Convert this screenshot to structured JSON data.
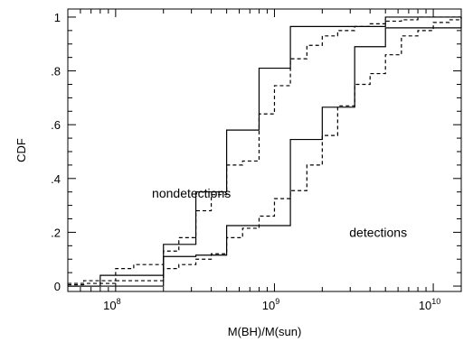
{
  "chart_data": {
    "type": "line",
    "step": true,
    "xlabel": "M(BH)/M(sun)",
    "ylabel": "CDF",
    "xscale": "log",
    "xlim": [
      50000000,
      15000000000
    ],
    "ylim": [
      -0.02,
      1.03
    ],
    "x_tick_labels": [
      {
        "value": 100000000,
        "base": "10",
        "exp": "8"
      },
      {
        "value": 1000000000,
        "base": "10",
        "exp": "9"
      },
      {
        "value": 10000000000,
        "base": "10",
        "exp": "10"
      }
    ],
    "y_ticks": [
      {
        "value": 0,
        "label": "0"
      },
      {
        "value": 0.2,
        "label": ".2"
      },
      {
        "value": 0.4,
        "label": ".4"
      },
      {
        "value": 0.6,
        "label": ".6"
      },
      {
        "value": 0.8,
        "label": ".8"
      },
      {
        "value": 1,
        "label": "1"
      }
    ],
    "annotations": [
      {
        "text": "nondetections",
        "x": 300000000,
        "y": 0.345
      },
      {
        "text": "detections",
        "x": 4500000000,
        "y": 0.2
      }
    ],
    "series": [
      {
        "style": "solid",
        "x": [
          50000000,
          80000000,
          200000000,
          320000000,
          500000000,
          800000000,
          1260000000,
          5000000000,
          15000000000
        ],
        "y": [
          0.0,
          0.04,
          0.155,
          0.35,
          0.58,
          0.81,
          0.965,
          1.0,
          1.0
        ]
      },
      {
        "style": "dashed",
        "x": [
          50000000,
          63000000,
          100000000,
          130000000,
          200000000,
          250000000,
          320000000,
          400000000,
          500000000,
          630000000,
          800000000,
          1000000000,
          1260000000,
          1600000000,
          2000000000,
          2500000000,
          3200000000,
          4000000000,
          5000000000,
          6300000000,
          8000000000,
          12600000000,
          15000000000
        ],
        "y": [
          0.005,
          0.02,
          0.065,
          0.08,
          0.13,
          0.18,
          0.28,
          0.34,
          0.45,
          0.465,
          0.64,
          0.745,
          0.845,
          0.895,
          0.93,
          0.95,
          0.965,
          0.975,
          0.985,
          0.99,
          1.0,
          1.0,
          1.0
        ]
      },
      {
        "style": "solid",
        "x": [
          50000000,
          200000000,
          320000000,
          500000000,
          1260000000,
          2000000000,
          3200000000,
          5000000000,
          15000000000
        ],
        "y": [
          0.0,
          0.11,
          0.115,
          0.225,
          0.545,
          0.665,
          0.89,
          0.96,
          1.0
        ]
      },
      {
        "style": "dashed",
        "x": [
          50000000,
          100000000,
          200000000,
          250000000,
          320000000,
          400000000,
          500000000,
          630000000,
          800000000,
          1000000000,
          1260000000,
          1600000000,
          2000000000,
          2500000000,
          3200000000,
          4000000000,
          5000000000,
          6300000000,
          8000000000,
          10000000000,
          12600000000,
          15000000000
        ],
        "y": [
          0.01,
          0.02,
          0.065,
          0.08,
          0.1,
          0.12,
          0.18,
          0.215,
          0.26,
          0.325,
          0.355,
          0.45,
          0.56,
          0.67,
          0.75,
          0.79,
          0.86,
          0.93,
          0.95,
          0.98,
          0.99,
          1.0
        ]
      }
    ]
  }
}
